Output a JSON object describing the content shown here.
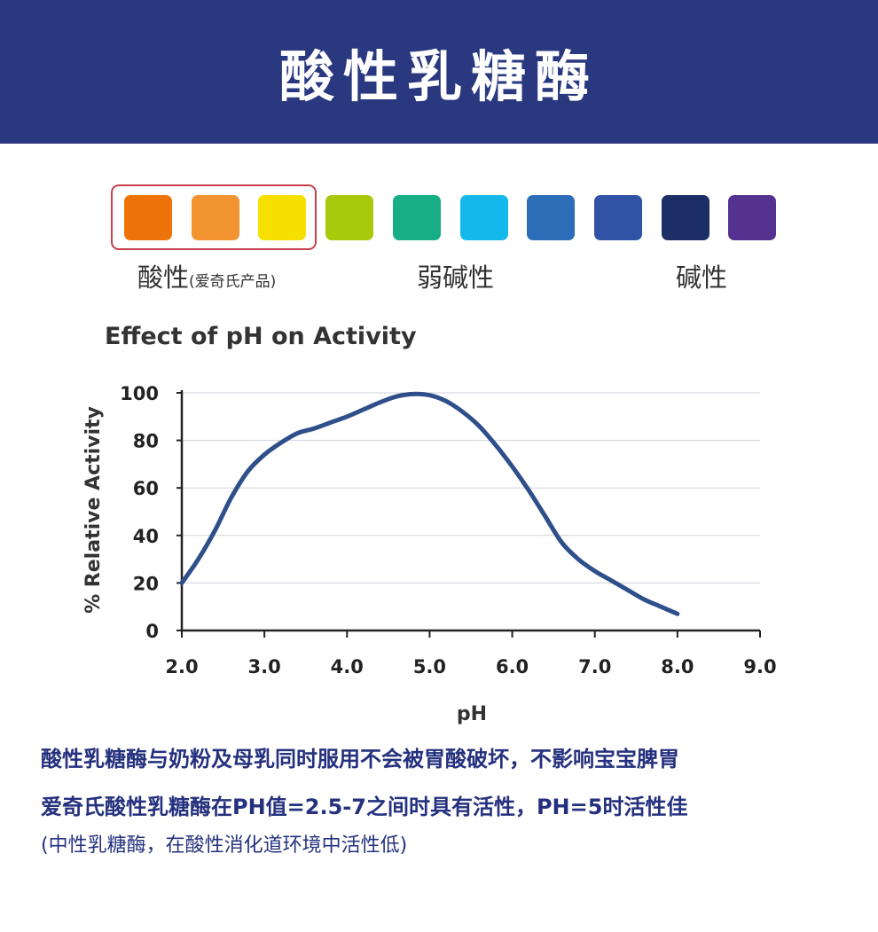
{
  "header": {
    "title": "酸性乳糖酶"
  },
  "ph_scale": {
    "swatches": [
      "#ee7309",
      "#f29530",
      "#f7df00",
      "#a8c90c",
      "#17ad86",
      "#14b8ea",
      "#2c6db7",
      "#3153a6",
      "#1b2e66",
      "#553290"
    ],
    "labels": {
      "acid": "酸性",
      "acid_note": "(爱奇氏产品)",
      "weak_alkaline": "弱碱性",
      "alkaline": "碱性"
    }
  },
  "chart_data": {
    "type": "line",
    "title": "Effect of pH on Activity",
    "xlabel": "pH",
    "ylabel": "% Relative Activity",
    "xlim": [
      2.0,
      9.0
    ],
    "ylim": [
      0,
      100
    ],
    "xticks": [
      "2.0",
      "3.0",
      "4.0",
      "5.0",
      "6.0",
      "7.0",
      "8.0",
      "9.0"
    ],
    "yticks": [
      "0",
      "20",
      "40",
      "60",
      "80",
      "100"
    ],
    "grid": true,
    "series": [
      {
        "color": "#2e4f8a",
        "x": [
          2.0,
          2.2,
          2.4,
          2.6,
          2.8,
          3.0,
          3.2,
          3.4,
          3.6,
          3.8,
          4.0,
          4.2,
          4.4,
          4.6,
          4.8,
          5.0,
          5.2,
          5.4,
          5.6,
          5.8,
          6.0,
          6.2,
          6.4,
          6.6,
          6.8,
          7.0,
          7.2,
          7.4,
          7.6,
          7.8,
          8.0
        ],
        "y": [
          20,
          30,
          42,
          56,
          67,
          74,
          79,
          83,
          85,
          87.5,
          90,
          93,
          96,
          98.5,
          99.5,
          99,
          96.5,
          92,
          86,
          78,
          69,
          59,
          48,
          37,
          30,
          25,
          21,
          17,
          13,
          10,
          7
        ]
      }
    ]
  },
  "description": {
    "line1": "酸性乳糖酶与奶粉及母乳同时服用不会被胃酸破坏，不影响宝宝脾胃",
    "line2": "爱奇氏酸性乳糖酶在PH值=2.5-7之间时具有活性，PH=5时活性佳",
    "line3": "(中性乳糖酶，在酸性消化道环境中活性低)"
  }
}
